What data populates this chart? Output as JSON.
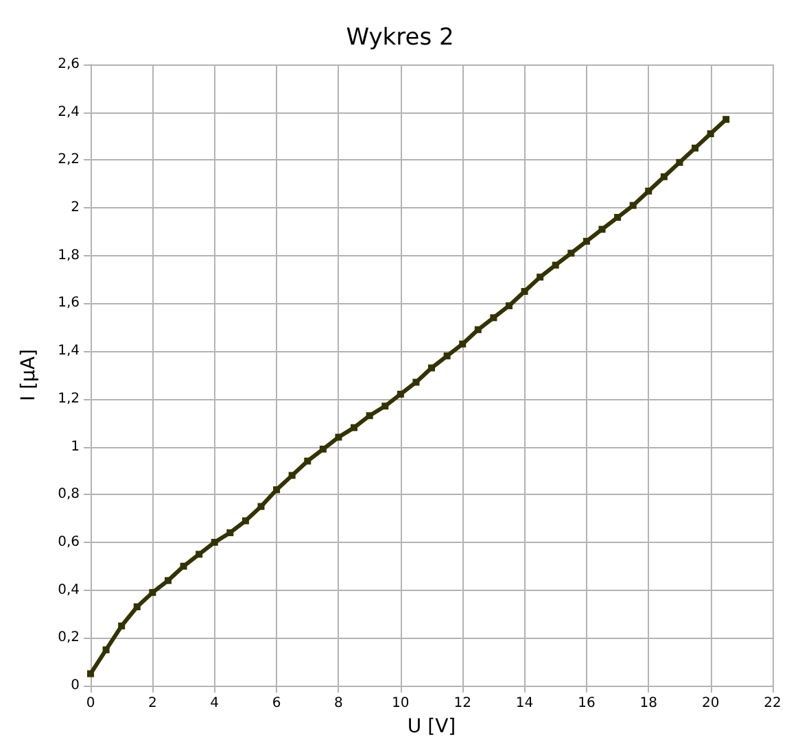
{
  "chart_data": {
    "type": "line",
    "title": "Wykres 2",
    "xlabel": "U [V]",
    "ylabel": "I [µA]",
    "x": [
      0,
      0.5,
      1,
      1.5,
      2,
      2.5,
      3,
      3.5,
      4,
      4.5,
      5,
      5.5,
      6,
      6.5,
      7,
      7.5,
      8,
      8.5,
      9,
      9.5,
      10,
      10.5,
      11,
      11.5,
      12,
      12.5,
      13,
      13.5,
      14,
      14.5,
      15,
      15.5,
      16,
      16.5,
      17,
      17.5,
      18,
      18.5,
      19,
      19.5,
      20,
      20.5
    ],
    "series": [
      {
        "color": "#333300",
        "values": [
          0.05,
          0.15,
          0.25,
          0.33,
          0.39,
          0.44,
          0.5,
          0.55,
          0.6,
          0.64,
          0.69,
          0.75,
          0.82,
          0.88,
          0.94,
          0.99,
          1.04,
          1.08,
          1.13,
          1.17,
          1.22,
          1.27,
          1.33,
          1.38,
          1.43,
          1.49,
          1.54,
          1.59,
          1.65,
          1.71,
          1.76,
          1.81,
          1.86,
          1.91,
          1.96,
          2.01,
          2.07,
          2.13,
          2.19,
          2.25,
          2.31,
          2.37
        ]
      }
    ],
    "xlim": [
      0,
      22
    ],
    "xticks": [
      0,
      2,
      4,
      6,
      8,
      10,
      12,
      14,
      16,
      18,
      20,
      22
    ],
    "ylim": [
      0,
      2.6
    ],
    "yticks": [
      0,
      {
        "value": 0.2,
        "label": "0,2"
      },
      {
        "value": 0.4,
        "label": "0,4"
      },
      {
        "value": 0.6,
        "label": "0,6"
      },
      {
        "value": 0.8,
        "label": "0,8"
      },
      1,
      {
        "value": 1.2,
        "label": "1,2"
      },
      {
        "value": 1.4,
        "label": "1,4"
      },
      {
        "value": 1.6,
        "label": "1,6"
      },
      {
        "value": 1.8,
        "label": "1,8"
      },
      2,
      {
        "value": 2.2,
        "label": "2,2"
      },
      {
        "value": 2.4,
        "label": "2,4"
      },
      {
        "value": 2.6,
        "label": "2,6"
      }
    ],
    "grid": true,
    "marker": "square",
    "line_style": "solid"
  }
}
